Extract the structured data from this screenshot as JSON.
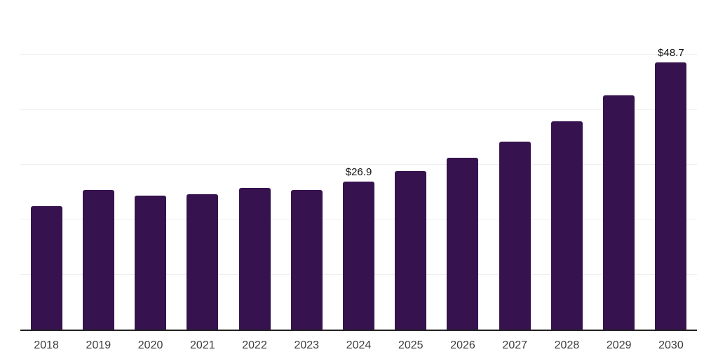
{
  "chart_data": {
    "type": "bar",
    "title": "",
    "xlabel": "",
    "ylabel": "",
    "categories": [
      "2018",
      "2019",
      "2020",
      "2021",
      "2022",
      "2023",
      "2024",
      "2025",
      "2026",
      "2027",
      "2028",
      "2029",
      "2030"
    ],
    "values": [
      22.5,
      25.4,
      24.4,
      24.6,
      25.8,
      25.4,
      26.9,
      28.9,
      31.3,
      34.2,
      37.9,
      42.7,
      48.7
    ],
    "bar_labels": {
      "2024": "$26.9",
      "2030": "$48.7"
    },
    "ylim": [
      0,
      60
    ],
    "gridlines": [
      10,
      20,
      30,
      40,
      50,
      60
    ],
    "grid": "horizontal-only",
    "legend": "none",
    "y_axis_tick_labels_visible": false,
    "colors": {
      "bar": "#36124F",
      "gridline": "#efefef",
      "axis_line": "#222222",
      "tick_label": "#3d3d3d",
      "data_label": "#111111",
      "background": "#ffffff"
    }
  }
}
